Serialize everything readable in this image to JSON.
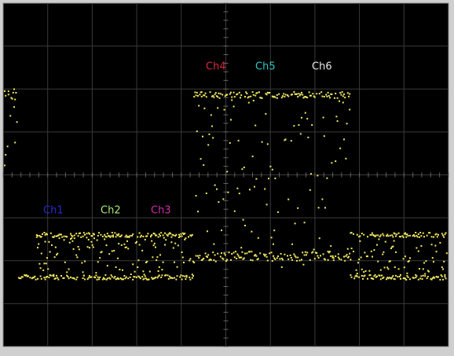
{
  "channels": [
    {
      "label": "Ch1",
      "color": "#2a2ad0"
    },
    {
      "label": "Ch2",
      "color": "#a8e878"
    },
    {
      "label": "Ch3",
      "color": "#d02aa8"
    },
    {
      "label": "Ch4",
      "color": "#d8283c"
    },
    {
      "label": "Ch5",
      "color": "#30c8c8"
    },
    {
      "label": "Ch6",
      "color": "#e8e8e8"
    }
  ]
}
